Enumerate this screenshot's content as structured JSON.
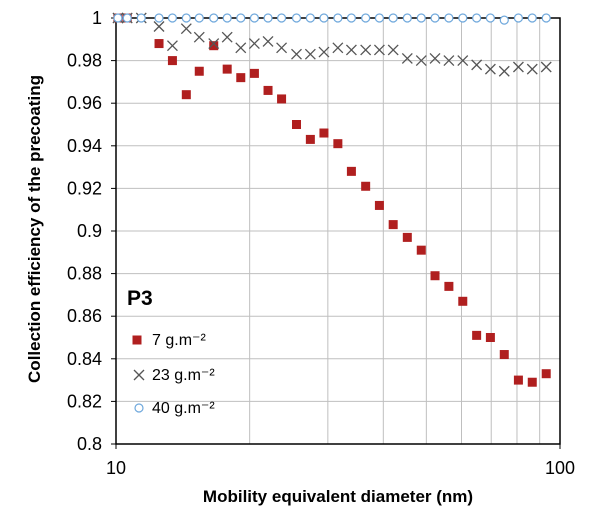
{
  "chart_data": {
    "type": "scatter",
    "panel_label": "P3",
    "xlabel": "Mobility equivalent diameter (nm)",
    "ylabel": "Collection efficiency of the precoating",
    "xscale": "log",
    "xlim": [
      10,
      100
    ],
    "ylim": [
      0.8,
      1.0
    ],
    "grid": true,
    "x_ticks": [
      "10",
      "100"
    ],
    "y_ticks": [
      "0.8",
      "0.82",
      "0.84",
      "0.86",
      "0.88",
      "0.9",
      "0.92",
      "0.94",
      "0.96",
      "0.98",
      "1"
    ],
    "legend_position": "bottom-left",
    "series": [
      {
        "name": "7 g.m⁻²",
        "marker": "square",
        "color": "#b01f1f",
        "x": [
          10.1,
          10.6,
          12.5,
          13.4,
          14.4,
          15.4,
          16.6,
          17.8,
          19.1,
          20.5,
          22.0,
          23.6,
          25.5,
          27.4,
          29.4,
          31.6,
          33.9,
          36.5,
          39.2,
          42.1,
          45.3,
          48.7,
          52.3,
          56.2,
          60.4,
          64.9,
          69.7,
          74.9,
          80.6,
          86.6,
          93.1
        ],
        "y": [
          1.0,
          1.0,
          0.988,
          0.98,
          0.964,
          0.975,
          0.987,
          0.976,
          0.972,
          0.974,
          0.966,
          0.962,
          0.95,
          0.943,
          0.946,
          0.941,
          0.928,
          0.921,
          0.912,
          0.903,
          0.897,
          0.891,
          0.879,
          0.874,
          0.867,
          0.851,
          0.85,
          0.842,
          0.83,
          0.829,
          0.833
        ]
      },
      {
        "name": "23 g.m⁻²",
        "marker": "x",
        "color": "#555555",
        "x": [
          10.1,
          10.6,
          11.4,
          12.5,
          13.4,
          14.4,
          15.4,
          16.6,
          17.8,
          19.1,
          20.5,
          22.0,
          23.6,
          25.5,
          27.4,
          29.4,
          31.6,
          33.9,
          36.5,
          39.2,
          42.1,
          45.3,
          48.7,
          52.3,
          56.2,
          60.4,
          64.9,
          69.7,
          74.9,
          80.6,
          86.6,
          93.1
        ],
        "y": [
          1.0,
          1.0,
          1.0,
          0.996,
          0.987,
          0.995,
          0.991,
          0.988,
          0.991,
          0.986,
          0.988,
          0.989,
          0.986,
          0.983,
          0.983,
          0.984,
          0.986,
          0.985,
          0.985,
          0.985,
          0.985,
          0.981,
          0.98,
          0.981,
          0.98,
          0.98,
          0.978,
          0.976,
          0.975,
          0.977,
          0.976,
          0.977
        ]
      },
      {
        "name": "40 g.m⁻²",
        "marker": "circle-open",
        "color": "#6fa8dc",
        "x": [
          10.1,
          10.6,
          11.4,
          12.5,
          13.4,
          14.4,
          15.4,
          16.6,
          17.8,
          19.1,
          20.5,
          22.0,
          23.6,
          25.5,
          27.4,
          29.4,
          31.6,
          33.9,
          36.5,
          39.2,
          42.1,
          45.3,
          48.7,
          52.3,
          56.2,
          60.4,
          64.9,
          69.7,
          74.9,
          80.6,
          86.6,
          93.1
        ],
        "y": [
          1.0,
          1.0,
          1.0,
          1.0,
          1.0,
          1.0,
          1.0,
          1.0,
          1.0,
          1.0,
          1.0,
          1.0,
          1.0,
          1.0,
          1.0,
          1.0,
          1.0,
          1.0,
          1.0,
          1.0,
          1.0,
          1.0,
          1.0,
          1.0,
          1.0,
          1.0,
          1.0,
          1.0,
          0.999,
          1.0,
          1.0,
          1.0
        ]
      }
    ]
  }
}
